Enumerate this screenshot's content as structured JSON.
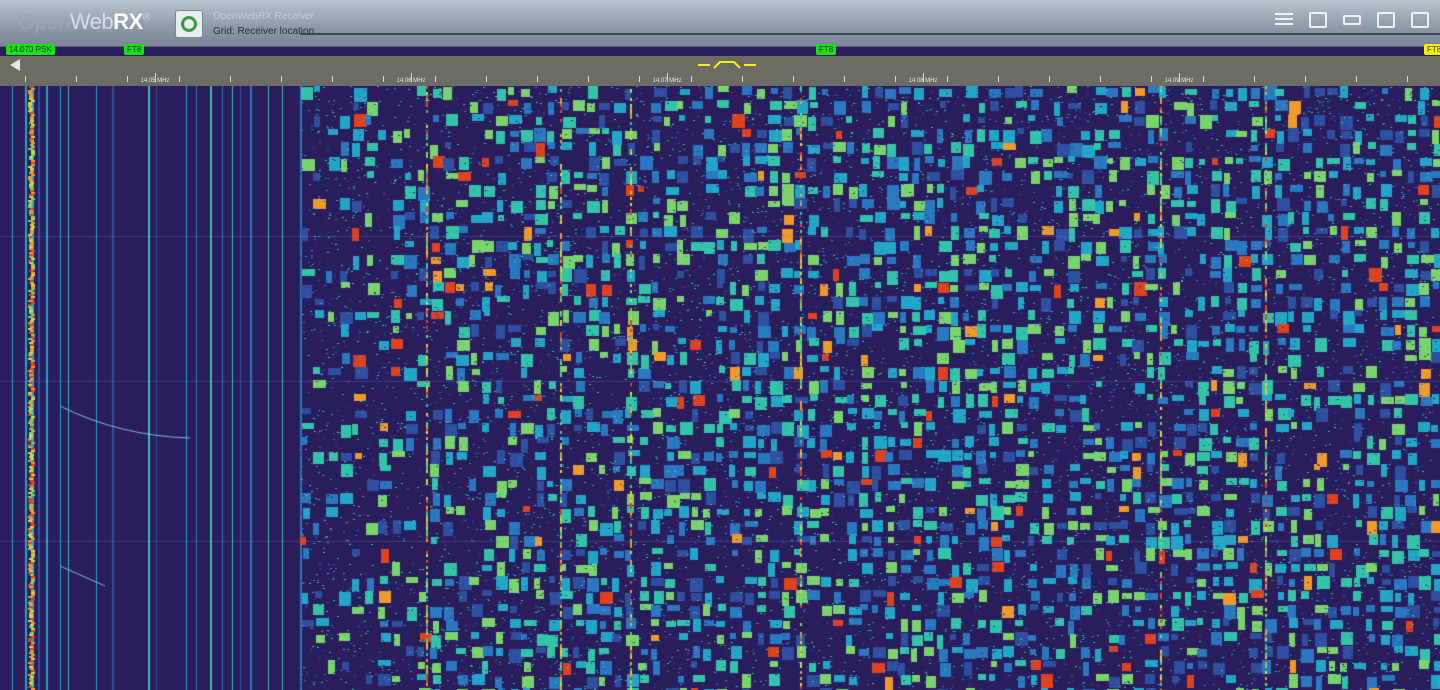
{
  "app": {
    "logo_part1": "Open",
    "logo_part2": "Web",
    "logo_part3": "RX",
    "logo_reg": "®"
  },
  "receiver": {
    "title": "OpenWebRX Receiver",
    "description": "Grid: Receiver location"
  },
  "toolbar": {
    "buttons": [
      {
        "name": "status-button",
        "icon": "status-icon"
      },
      {
        "name": "log-button",
        "icon": "log-icon"
      },
      {
        "name": "receiver-button",
        "icon": "receiver-icon"
      },
      {
        "name": "map-button",
        "icon": "map-icon"
      },
      {
        "name": "settings-button",
        "icon": "settings-icon"
      }
    ]
  },
  "bookmarks": [
    {
      "label": "14.070 PSK",
      "color": "green"
    },
    {
      "label": "FT8",
      "color": "green"
    },
    {
      "label": "FT8",
      "color": "green"
    },
    {
      "label": "FT8",
      "color": "yellow"
    }
  ],
  "scale": {
    "labels": [
      "14.05 MHz",
      "14.06 MHz",
      "14.07 MHz",
      "14.08 MHz",
      "14.09 MHz",
      "14.10 MHz"
    ]
  },
  "colors": {
    "waterfall_bg": "#2a1d5c",
    "bookmark_green": "#1adf1a",
    "bookmark_yellow": "#f2f20a",
    "scale_bg": "#6c6c64"
  }
}
